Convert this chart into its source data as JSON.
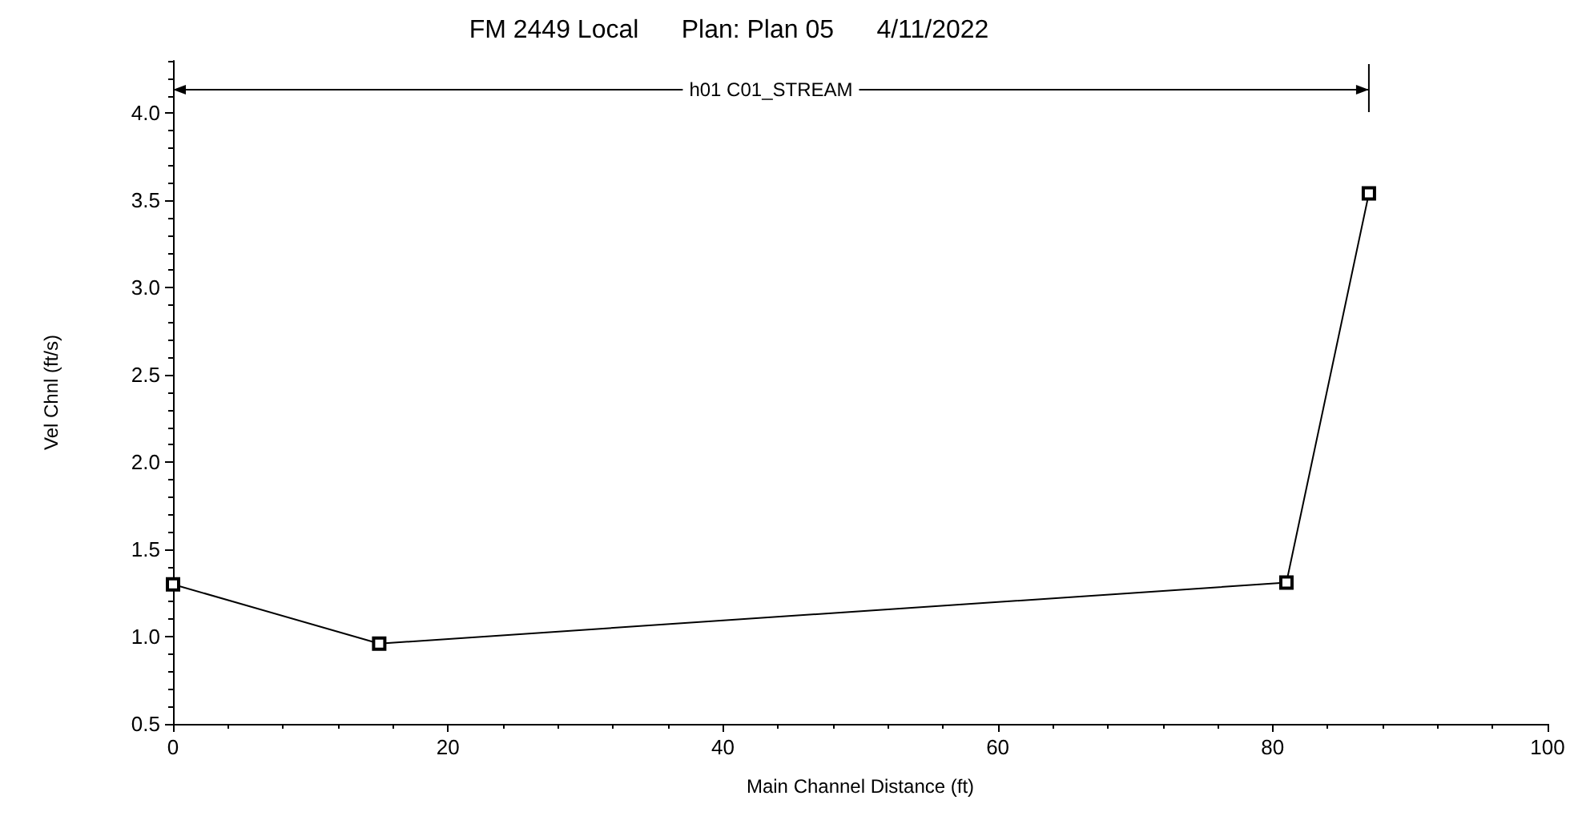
{
  "chart_data": {
    "type": "line",
    "title": "FM 2449 Local      Plan: Plan 05      4/11/2022",
    "xlabel": "Main Channel Distance (ft)",
    "ylabel": "Vel Chnl (ft/s)",
    "x": [
      0,
      15,
      81,
      87
    ],
    "series": [
      {
        "color": "#000000",
        "values": [
          1.3,
          0.96,
          1.31,
          3.54
        ]
      }
    ],
    "xlim": [
      0,
      100
    ],
    "xticks": [
      0,
      20,
      40,
      60,
      80,
      100
    ],
    "ylim": [
      0.5,
      4.3
    ],
    "yticks": [
      0.5,
      {
        "value": 1,
        "label": "1.0"
      },
      1.5,
      {
        "value": 2,
        "label": "2.0"
      },
      2.5,
      {
        "value": 3,
        "label": "3.0"
      },
      3.5,
      {
        "value": 4,
        "label": "4.0"
      }
    ],
    "annotations": [
      "h01 C01_STREAM"
    ],
    "marker": "square",
    "line_style": "solid",
    "grid": false
  }
}
